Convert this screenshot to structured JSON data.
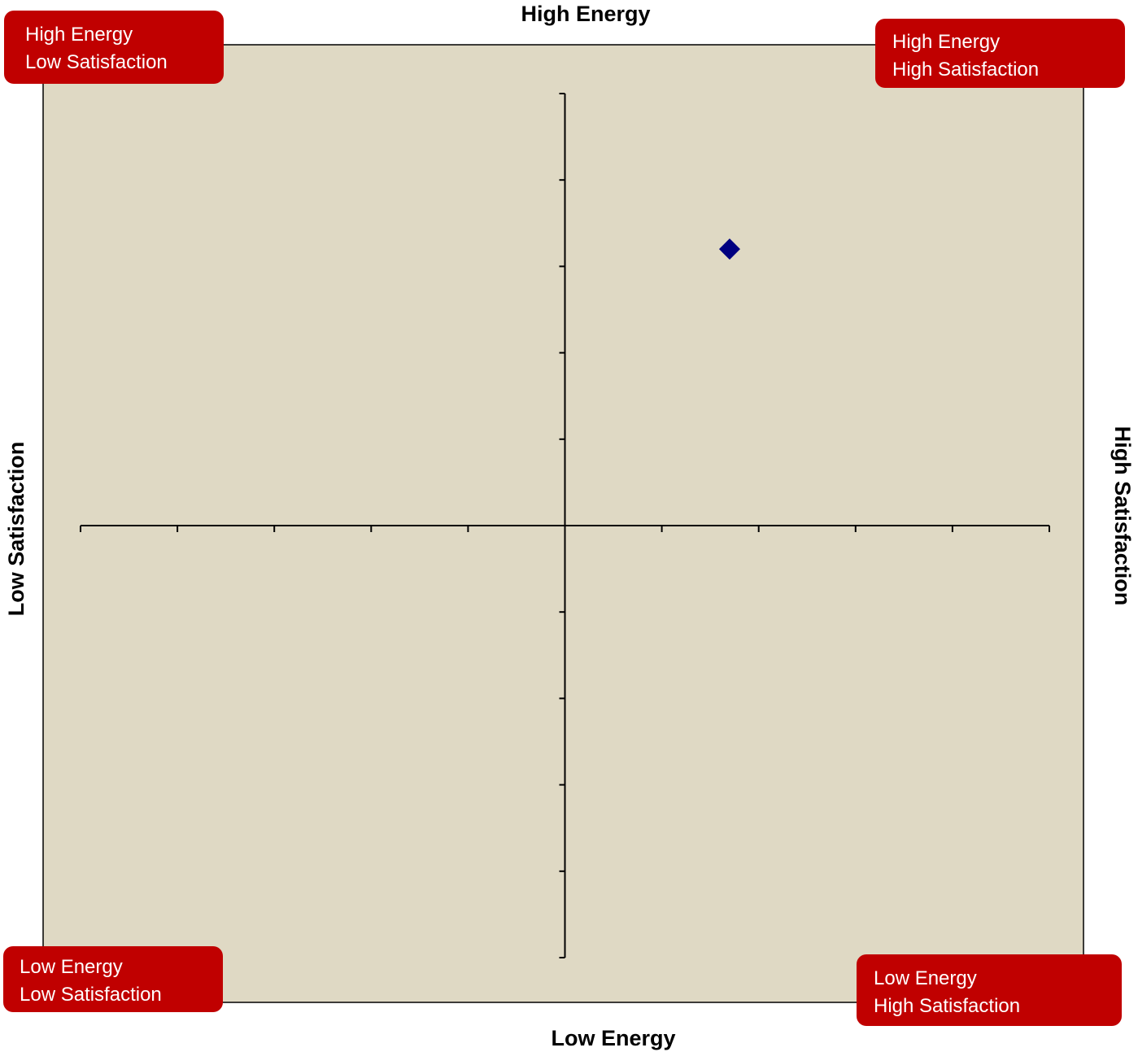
{
  "chart_data": {
    "type": "scatter",
    "top_label": "High Energy",
    "bottom_label": "Low Energy",
    "left_label": "Low Satisfaction",
    "right_label": "High Satisfaction",
    "annotations": [
      {
        "lines": [
          "High Energy",
          "Low Satisfaction"
        ]
      },
      {
        "lines": [
          "High Energy",
          "High Satisfaction"
        ]
      },
      {
        "lines": [
          "Low Energy",
          "Low Satisfaction"
        ]
      },
      {
        "lines": [
          "Low Energy",
          "High Satisfaction"
        ]
      }
    ],
    "series": [
      {
        "color": "#000080",
        "x": [
          1.7
        ],
        "y": [
          3.2
        ]
      }
    ],
    "xlim": [
      -5,
      5
    ],
    "ylim": [
      -5,
      5
    ],
    "xticks": [
      -5,
      -4,
      -3,
      -2,
      -1,
      0,
      1,
      2,
      3,
      4,
      5
    ],
    "yticks": [
      -5,
      -4,
      -3,
      -2,
      -1,
      0,
      1,
      2,
      3,
      4,
      5
    ],
    "plot_background": "#dfd9c4",
    "annotation_color": "#c00000"
  }
}
